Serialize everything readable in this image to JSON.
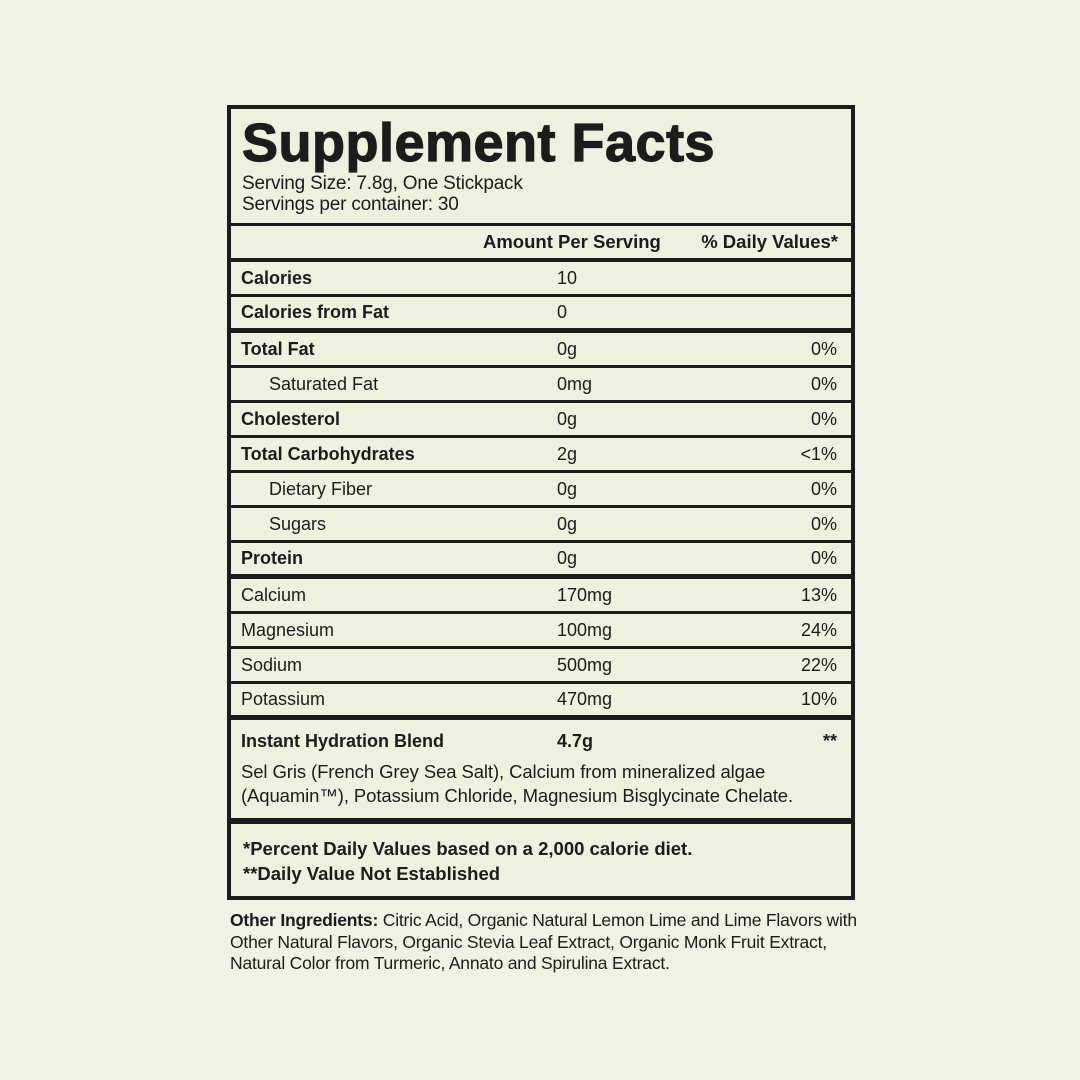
{
  "colors": {
    "background": "#f1f2e6",
    "panel": "#eef0e0",
    "ink": "#1c1c1c"
  },
  "label": {
    "title": "Supplement Facts",
    "serving_size": "Serving Size: 7.8g, One Stickpack",
    "servings_per_container": "Servings per container: 30",
    "columns": {
      "amount": "Amount Per Serving",
      "daily": "% Daily Values*"
    },
    "rows": [
      {
        "label": "Calories",
        "amount": "10",
        "dv": "",
        "bold": true,
        "indent": false,
        "thick": false
      },
      {
        "label": "Calories from Fat",
        "amount": "0",
        "dv": "",
        "bold": true,
        "indent": false,
        "thick": true
      },
      {
        "label": "Total Fat",
        "amount": "0g",
        "dv": "0%",
        "bold": true,
        "indent": false,
        "thick": false
      },
      {
        "label": "Saturated Fat",
        "amount": "0mg",
        "dv": "0%",
        "bold": false,
        "indent": true,
        "thick": false
      },
      {
        "label": "Cholesterol",
        "amount": "0g",
        "dv": "0%",
        "bold": true,
        "indent": false,
        "thick": false
      },
      {
        "label": "Total Carbohydrates",
        "amount": "2g",
        "dv": "<1%",
        "bold": true,
        "indent": false,
        "thick": false
      },
      {
        "label": "Dietary Fiber",
        "amount": "0g",
        "dv": "0%",
        "bold": false,
        "indent": true,
        "thick": false
      },
      {
        "label": "Sugars",
        "amount": "0g",
        "dv": "0%",
        "bold": false,
        "indent": true,
        "thick": false
      },
      {
        "label": "Protein",
        "amount": "0g",
        "dv": "0%",
        "bold": true,
        "indent": false,
        "thick": true
      },
      {
        "label": "Calcium",
        "amount": "170mg",
        "dv": "13%",
        "bold": false,
        "indent": false,
        "thick": false
      },
      {
        "label": "Magnesium",
        "amount": "100mg",
        "dv": "24%",
        "bold": false,
        "indent": false,
        "thick": false
      },
      {
        "label": "Sodium",
        "amount": "500mg",
        "dv": "22%",
        "bold": false,
        "indent": false,
        "thick": false
      },
      {
        "label": "Potassium",
        "amount": "470mg",
        "dv": "10%",
        "bold": false,
        "indent": false,
        "thick": true
      }
    ],
    "blend": {
      "label": "Instant Hydration Blend",
      "amount": "4.7g",
      "dv": "**",
      "description": "Sel Gris (French Grey Sea Salt), Calcium from mineralized algae (Aquamin™), Potassium Chloride, Magnesium Bisglycinate Chelate."
    },
    "footnotes": [
      "*Percent Daily Values based on a 2,000 calorie diet.",
      "**Daily Value Not Established"
    ],
    "other_ingredients_label": "Other Ingredients:",
    "other_ingredients_text": " Citric Acid, Organic Natural Lemon Lime and Lime Flavors with Other Natural Flavors, Organic Stevia Leaf Extract, Organic Monk Fruit Extract, Natural Color from Turmeric, Annato and Spirulina Extract."
  }
}
